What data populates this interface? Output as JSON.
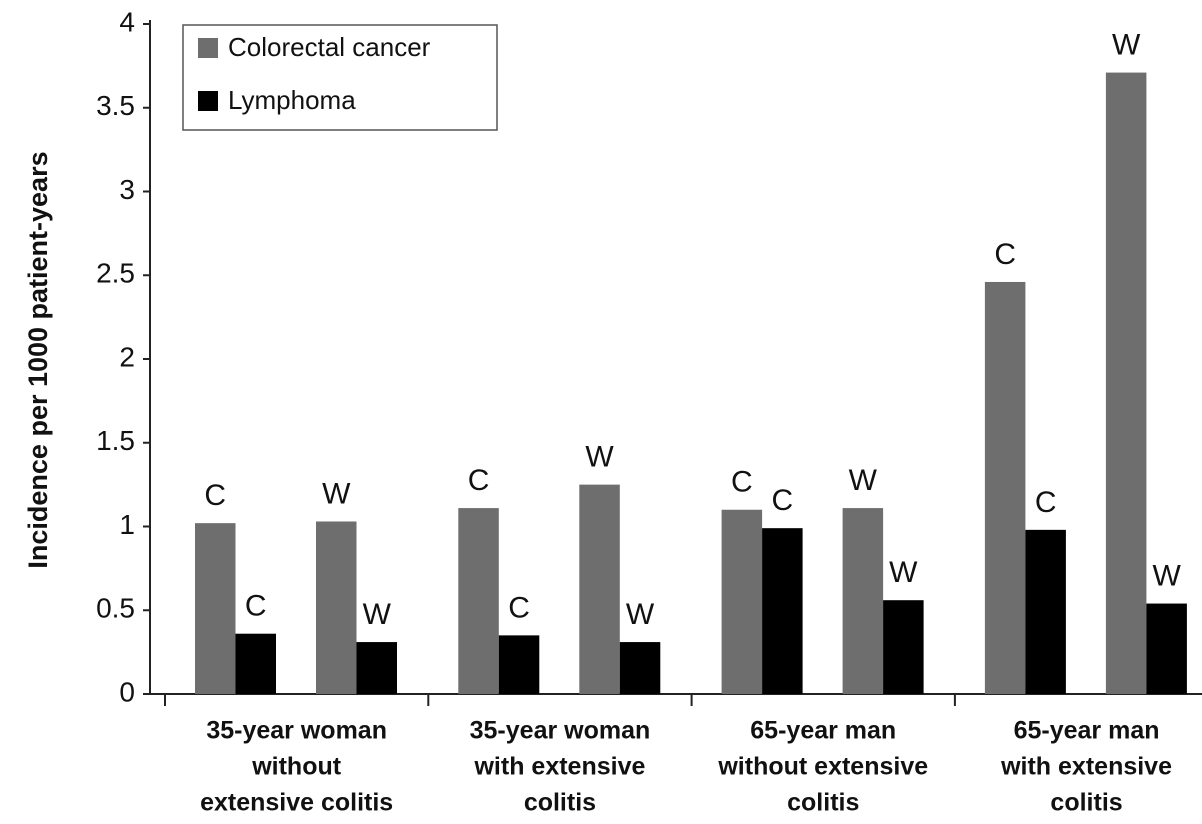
{
  "chart_data": {
    "type": "bar",
    "y_label": "Incidence per 1000 patient-years",
    "groups": [
      [
        "35-year woman",
        "without",
        "extensive colitis"
      ],
      [
        "35-year woman",
        "with extensive",
        "colitis"
      ],
      [
        "65-year man",
        "without extensive",
        "colitis"
      ],
      [
        "65-year man",
        "with extensive",
        "colitis"
      ]
    ],
    "categories": [
      "C",
      "W",
      "C",
      "W",
      "C",
      "W",
      "C",
      "W"
    ],
    "series": [
      {
        "name": "Colorectal cancer",
        "color": "#6e6e6e",
        "values": [
          1.02,
          1.03,
          1.11,
          1.25,
          1.1,
          1.11,
          2.46,
          3.71
        ]
      },
      {
        "name": "Lymphoma",
        "color": "#000000",
        "values": [
          0.36,
          0.31,
          0.35,
          0.31,
          0.99,
          0.56,
          0.98,
          0.54
        ]
      }
    ],
    "ylim": [
      0,
      4
    ],
    "yticks": [
      0,
      0.5,
      1,
      1.5,
      2,
      2.5,
      3,
      3.5,
      4
    ],
    "legend": "top-left"
  }
}
